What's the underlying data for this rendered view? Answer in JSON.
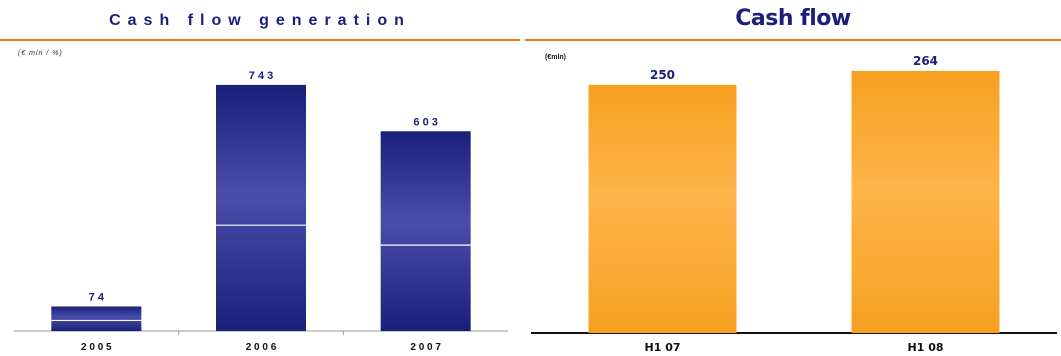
{
  "chart_data": [
    {
      "type": "bar",
      "title": "Cash flow generation",
      "unit_label": "(€ mln / %)",
      "categories": [
        "2005",
        "2006",
        "2007"
      ],
      "values": [
        74,
        743,
        603
      ],
      "data_labels": [
        "7 4",
        "7 4 3",
        "6 0 3"
      ],
      "tick_labels": [
        "2 0 0 5",
        "2 0 0 6",
        "2 0 0 7"
      ],
      "ylim": [
        0,
        800
      ],
      "bar_color": "#1a1f7a",
      "bar_highlight": "#4a4ea8",
      "grid": false
    },
    {
      "type": "bar",
      "title": "Cash flow",
      "unit_label": "(€mln)",
      "categories": [
        "H1 07",
        "H1 08"
      ],
      "values": [
        250,
        264
      ],
      "data_labels": [
        "250",
        "264"
      ],
      "tick_labels": [
        "H1 07",
        "H1 08"
      ],
      "ylim": [
        0,
        275
      ],
      "bar_color": "#f7a020",
      "bar_highlight": "#fdb54a",
      "grid": false
    }
  ]
}
